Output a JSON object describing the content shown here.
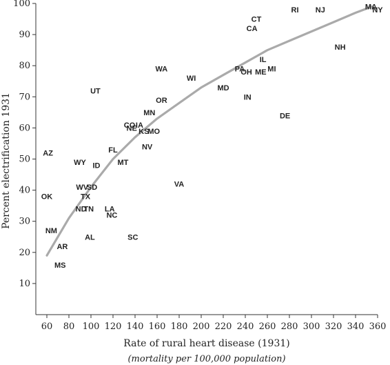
{
  "chart_data": {
    "type": "scatter",
    "xlabel": "Rate of rural heart disease (1931)",
    "xlabel_sub": "(mortality per 100,000 population)",
    "ylabel": "Percent electrification 1931",
    "xlim": [
      50,
      360
    ],
    "ylim": [
      0,
      100
    ],
    "xticks": [
      60,
      80,
      100,
      120,
      140,
      160,
      180,
      200,
      220,
      240,
      260,
      280,
      300,
      320,
      340,
      360
    ],
    "yticks": [
      10,
      20,
      30,
      40,
      50,
      60,
      70,
      80,
      90,
      100
    ],
    "grid": false,
    "fit_curve": {
      "color": "#aaaaaa",
      "points": [
        [
          60,
          19
        ],
        [
          80,
          31
        ],
        [
          100,
          41
        ],
        [
          120,
          50
        ],
        [
          140,
          57
        ],
        [
          160,
          63
        ],
        [
          180,
          68
        ],
        [
          200,
          73
        ],
        [
          220,
          77
        ],
        [
          240,
          81
        ],
        [
          260,
          85
        ],
        [
          280,
          88
        ],
        [
          300,
          91
        ],
        [
          320,
          94
        ],
        [
          340,
          97
        ],
        [
          355,
          99
        ]
      ]
    },
    "points": [
      {
        "label": "RI",
        "x": 285,
        "y": 98
      },
      {
        "label": "NJ",
        "x": 308,
        "y": 98
      },
      {
        "label": "MA",
        "x": 354,
        "y": 99
      },
      {
        "label": "NY",
        "x": 360,
        "y": 98
      },
      {
        "label": "CT",
        "x": 250,
        "y": 95
      },
      {
        "label": "CA",
        "x": 246,
        "y": 92
      },
      {
        "label": "NH",
        "x": 326,
        "y": 86
      },
      {
        "label": "IL",
        "x": 256,
        "y": 82
      },
      {
        "label": "PA",
        "x": 235,
        "y": 79
      },
      {
        "label": "OH",
        "x": 241,
        "y": 78
      },
      {
        "label": "ME",
        "x": 254,
        "y": 78
      },
      {
        "label": "MI",
        "x": 264,
        "y": 79
      },
      {
        "label": "WA",
        "x": 164,
        "y": 79
      },
      {
        "label": "WI",
        "x": 191,
        "y": 76
      },
      {
        "label": "MD",
        "x": 220,
        "y": 73
      },
      {
        "label": "IN",
        "x": 242,
        "y": 70
      },
      {
        "label": "UT",
        "x": 104,
        "y": 72
      },
      {
        "label": "OR",
        "x": 164,
        "y": 69
      },
      {
        "label": "DE",
        "x": 276,
        "y": 64
      },
      {
        "label": "MN",
        "x": 153,
        "y": 65
      },
      {
        "label": "CO",
        "x": 135,
        "y": 61
      },
      {
        "label": "IA",
        "x": 144,
        "y": 61
      },
      {
        "label": "NE",
        "x": 137,
        "y": 60
      },
      {
        "label": "KS",
        "x": 148,
        "y": 59
      },
      {
        "label": "MO",
        "x": 157,
        "y": 59
      },
      {
        "label": "NV",
        "x": 151,
        "y": 54
      },
      {
        "label": "FL",
        "x": 120,
        "y": 53
      },
      {
        "label": "AZ",
        "x": 61,
        "y": 52
      },
      {
        "label": "WY",
        "x": 90,
        "y": 49
      },
      {
        "label": "ID",
        "x": 105,
        "y": 48
      },
      {
        "label": "MT",
        "x": 129,
        "y": 49
      },
      {
        "label": "VA",
        "x": 180,
        "y": 42
      },
      {
        "label": "WV",
        "x": 92,
        "y": 41
      },
      {
        "label": "SD",
        "x": 101,
        "y": 41
      },
      {
        "label": "TX",
        "x": 95,
        "y": 38
      },
      {
        "label": "OK",
        "x": 60,
        "y": 38
      },
      {
        "label": "ND",
        "x": 91,
        "y": 34
      },
      {
        "label": "TN",
        "x": 98,
        "y": 34
      },
      {
        "label": "LA",
        "x": 117,
        "y": 34
      },
      {
        "label": "NC",
        "x": 119,
        "y": 32
      },
      {
        "label": "NM",
        "x": 64,
        "y": 27
      },
      {
        "label": "AL",
        "x": 99,
        "y": 25
      },
      {
        "label": "SC",
        "x": 138,
        "y": 25
      },
      {
        "label": "AR",
        "x": 74,
        "y": 22
      },
      {
        "label": "MS",
        "x": 72,
        "y": 16
      }
    ]
  }
}
